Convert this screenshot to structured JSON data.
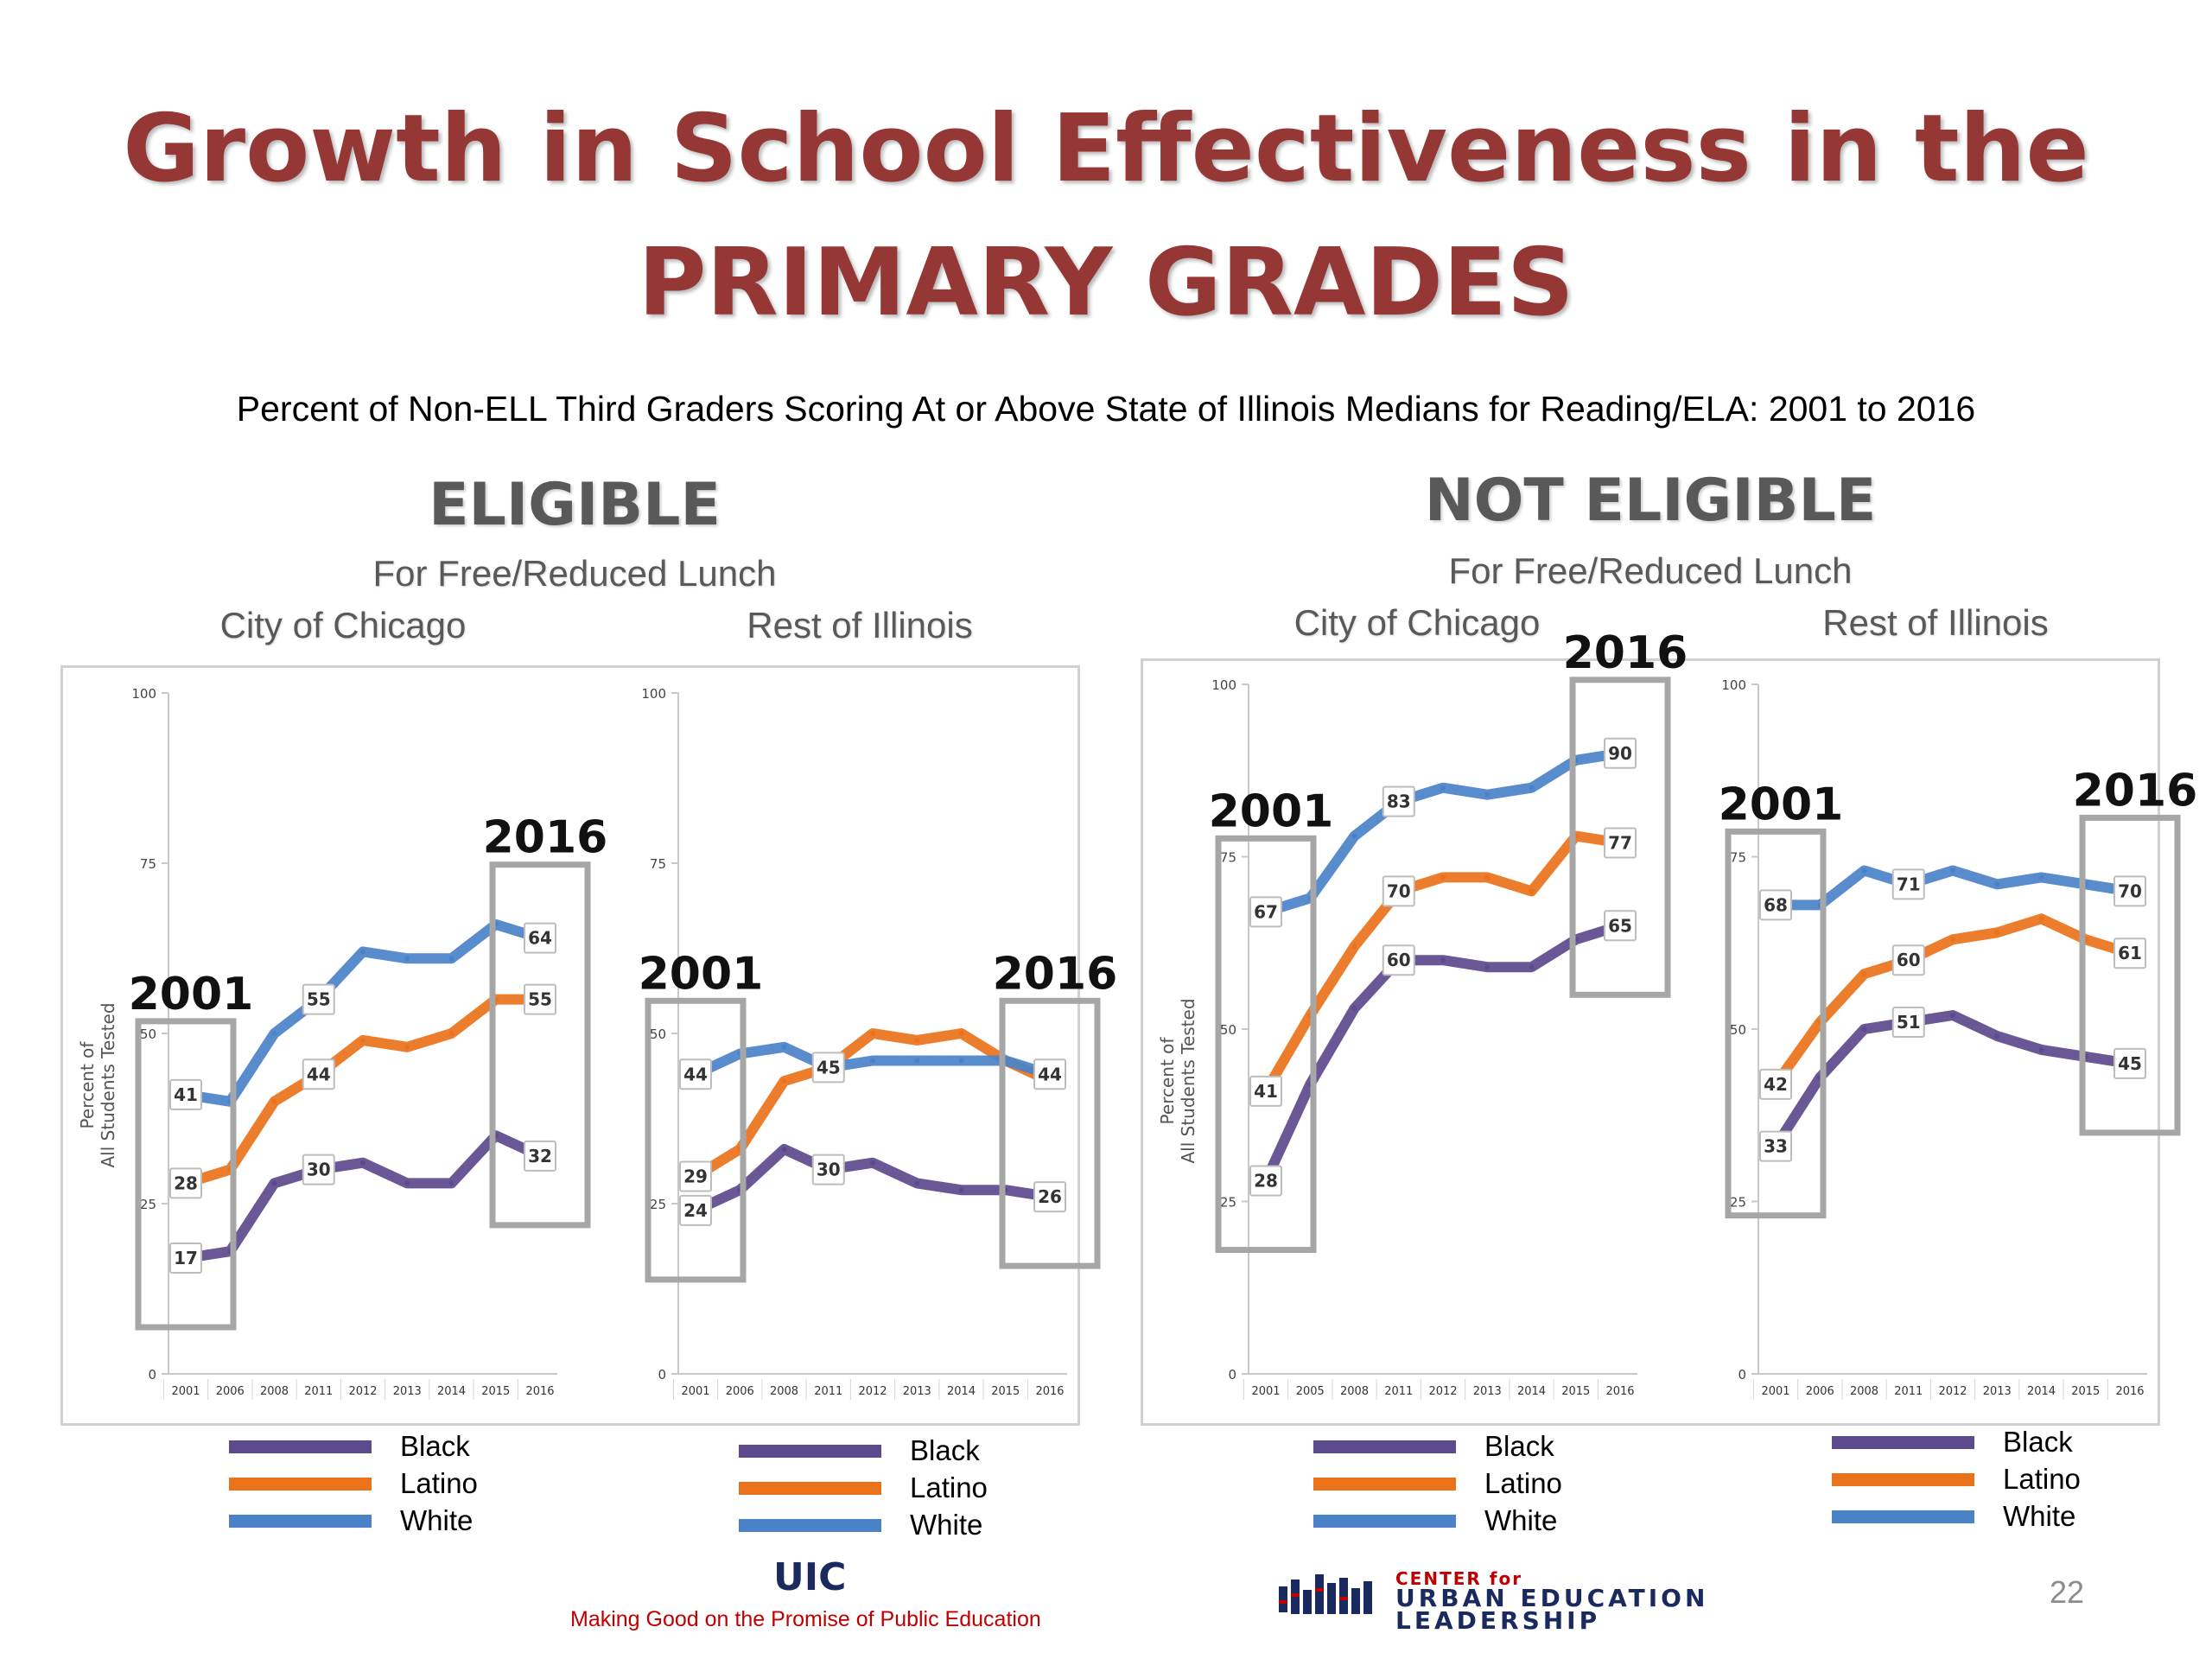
{
  "slide": {
    "title_line1": "Growth in School Effectiveness in the",
    "title_line2": "PRIMARY GRADES",
    "subtitle": "Percent of Non-ELL Third Graders Scoring At or Above State of Illinois Medians for Reading/ELA:  2001 to 2016",
    "page_number": "22"
  },
  "groups": [
    {
      "title": "ELIGIBLE",
      "subtitle": "For Free/Reduced Lunch"
    },
    {
      "title": "NOT ELIGIBLE",
      "subtitle": "For Free/Reduced Lunch"
    }
  ],
  "legend": {
    "black": "Black",
    "latino": "Latino",
    "white": "White"
  },
  "colors": {
    "black": "#5c4a8c",
    "latino": "#e9721b",
    "white": "#4a82c8",
    "title": "#953735",
    "box": "#a6a6a6"
  },
  "footer": {
    "uic_logo": "UIC",
    "uic_tagline": "Making Good on the Promise of Public Education",
    "cuel_line1": "CENTER for",
    "cuel_line2": "URBAN EDUCATION",
    "cuel_line3": "LEADERSHIP"
  },
  "chart_data": [
    {
      "type": "line",
      "region": "City of Chicago",
      "group": "ELIGIBLE For Free/Reduced Lunch",
      "ylabel": "Percent of All Students Tested",
      "yticks": [
        "100",
        "75",
        "50",
        "25",
        "0"
      ],
      "ylim": [
        0,
        100
      ],
      "x": [
        "2001",
        "2006",
        "2008",
        "2011",
        "2012",
        "2013",
        "2014",
        "2015",
        "2016"
      ],
      "series": [
        {
          "name": "Black",
          "values": [
            17,
            18,
            28,
            30,
            31,
            28,
            28,
            35,
            32
          ]
        },
        {
          "name": "Latino",
          "values": [
            28,
            30,
            40,
            44,
            49,
            48,
            50,
            55,
            55
          ]
        },
        {
          "name": "White",
          "values": [
            41,
            40,
            50,
            55,
            62,
            61,
            61,
            66,
            64
          ]
        }
      ],
      "annotations": {
        "start_year": "2001",
        "end_year": "2016"
      }
    },
    {
      "type": "line",
      "region": "Rest of Illinois",
      "group": "ELIGIBLE For Free/Reduced Lunch",
      "yticks": [
        "100",
        "75",
        "50",
        "25",
        "0"
      ],
      "ylim": [
        0,
        100
      ],
      "x": [
        "2001",
        "2006",
        "2008",
        "2011",
        "2012",
        "2013",
        "2014",
        "2015",
        "2016"
      ],
      "series": [
        {
          "name": "Black",
          "values": [
            24,
            27,
            33,
            30,
            31,
            28,
            27,
            27,
            26
          ]
        },
        {
          "name": "Latino",
          "values": [
            29,
            33,
            43,
            45,
            50,
            49,
            50,
            46,
            43
          ]
        },
        {
          "name": "White",
          "values": [
            44,
            47,
            48,
            45,
            46,
            46,
            46,
            46,
            44
          ]
        }
      ],
      "annotations": {
        "start_year": "2001",
        "end_year": "2016"
      }
    },
    {
      "type": "line",
      "region": "City of Chicago",
      "group": "NOT ELIGIBLE For Free/Reduced Lunch",
      "ylabel": "Percent of All Students Tested",
      "yticks": [
        "100",
        "75",
        "50",
        "25",
        "0"
      ],
      "ylim": [
        0,
        100
      ],
      "x": [
        "2001",
        "2005",
        "2008",
        "2011",
        "2012",
        "2013",
        "2014",
        "2015",
        "2016"
      ],
      "series": [
        {
          "name": "Black",
          "values": [
            28,
            42,
            53,
            60,
            60,
            59,
            59,
            63,
            65
          ]
        },
        {
          "name": "Latino",
          "values": [
            41,
            52,
            62,
            70,
            72,
            72,
            70,
            78,
            77
          ]
        },
        {
          "name": "White",
          "values": [
            67,
            69,
            78,
            83,
            85,
            84,
            85,
            89,
            90
          ]
        }
      ],
      "annotations": {
        "start_year": "2001",
        "end_year": "2016"
      }
    },
    {
      "type": "line",
      "region": "Rest of Illinois",
      "group": "NOT ELIGIBLE For Free/Reduced Lunch",
      "yticks": [
        "100",
        "75",
        "50",
        "25",
        "0"
      ],
      "ylim": [
        0,
        100
      ],
      "x": [
        "2001",
        "2006",
        "2008",
        "2011",
        "2012",
        "2013",
        "2014",
        "2015",
        "2016"
      ],
      "series": [
        {
          "name": "Black",
          "values": [
            33,
            43,
            50,
            51,
            52,
            49,
            47,
            46,
            45
          ]
        },
        {
          "name": "Latino",
          "values": [
            42,
            51,
            58,
            60,
            63,
            64,
            66,
            63,
            61
          ]
        },
        {
          "name": "White",
          "values": [
            68,
            68,
            73,
            71,
            73,
            71,
            72,
            71,
            70
          ]
        }
      ],
      "annotations": {
        "start_year": "2001",
        "end_year": "2016"
      }
    }
  ]
}
